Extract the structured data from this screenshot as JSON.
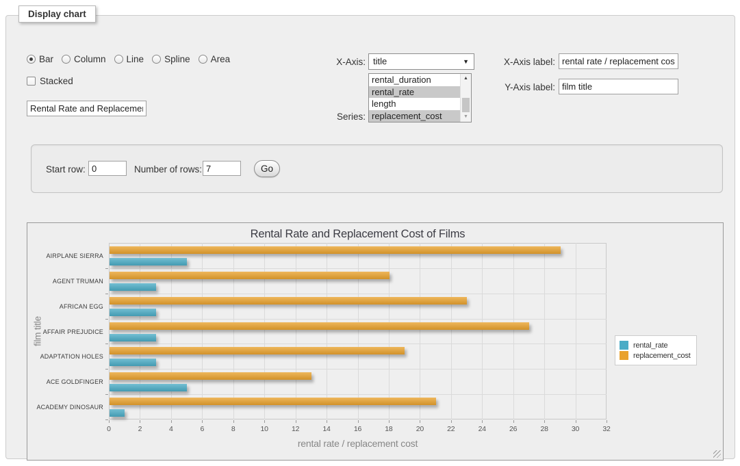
{
  "panel": {
    "legend_title": "Display chart"
  },
  "icons": {
    "dropdown_arrow": "▼",
    "scroll_up": "▲",
    "scroll_down": "▼"
  },
  "controls": {
    "chart_type_options": [
      "Bar",
      "Column",
      "Line",
      "Spline",
      "Area"
    ],
    "chart_type_selected": "Bar",
    "stacked_label": "Stacked",
    "stacked_checked": false,
    "chart_title_value": "Rental Rate and Replacement Cost of Films",
    "x_axis_label": "X-Axis:",
    "x_axis_selected": "title",
    "series_label": "Series:",
    "series_options": [
      {
        "label": "rental_duration",
        "selected": false
      },
      {
        "label": "rental_rate",
        "selected": true
      },
      {
        "label": "length",
        "selected": false
      },
      {
        "label": "replacement_cost",
        "selected": true
      }
    ],
    "x_axis_label_label": "X-Axis label:",
    "x_axis_label_value": "rental rate / replacement cost",
    "y_axis_label_label": "Y-Axis label:",
    "y_axis_label_value": "film title"
  },
  "pager": {
    "start_row_label": "Start row:",
    "start_row_value": "0",
    "num_rows_label": "Number of rows:",
    "num_rows_value": "7",
    "go_label": "Go"
  },
  "chart_data": {
    "type": "bar",
    "orientation": "horizontal",
    "title": "Rental Rate and Replacement Cost of Films",
    "xlabel": "rental rate / replacement cost",
    "ylabel": "film title",
    "categories": [
      "AIRPLANE SIERRA",
      "AGENT TRUMAN",
      "AFRICAN EGG",
      "AFFAIR PREJUDICE",
      "ADAPTATION HOLES",
      "ACE GOLDFINGER",
      "ACADEMY DINOSAUR"
    ],
    "series": [
      {
        "name": "rental_rate",
        "color": "#4bacc6",
        "values": [
          4.99,
          2.99,
          2.99,
          2.99,
          2.99,
          4.99,
          0.99
        ]
      },
      {
        "name": "replacement_cost",
        "color": "#e9a22e",
        "values": [
          28.99,
          17.99,
          22.99,
          26.99,
          18.99,
          12.99,
          20.99
        ]
      }
    ],
    "xlim": [
      0,
      32
    ],
    "xtick_step": 2,
    "grid": true,
    "legend_position": "right"
  }
}
